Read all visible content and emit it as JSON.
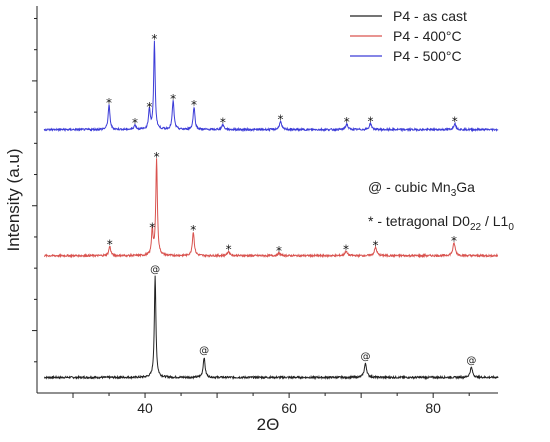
{
  "chart_data": {
    "type": "line",
    "xlabel": "2Θ",
    "ylabel": "Intensity (a.u)",
    "xlim": [
      25,
      89
    ],
    "ylim": [
      0,
      6.2
    ],
    "x_ticks": [
      40,
      60,
      80
    ],
    "grid": false,
    "legend_position": "top-right",
    "series": [
      {
        "name": "P4 - as cast",
        "color": "#222222",
        "offset": 0,
        "baseline": 0.25,
        "peaks": [
          {
            "x": 41.4,
            "h": 1.62,
            "w": 0.13,
            "mark": "@"
          },
          {
            "x": 48.2,
            "h": 0.32,
            "w": 0.16,
            "mark": "@"
          },
          {
            "x": 70.6,
            "h": 0.22,
            "w": 0.2,
            "mark": "@"
          },
          {
            "x": 85.3,
            "h": 0.16,
            "w": 0.2,
            "mark": "@"
          }
        ]
      },
      {
        "name": "P4 - 400°C",
        "color": "#d9534f",
        "offset": 2.0,
        "baseline": 0.2,
        "peaks": [
          {
            "x": 35.1,
            "h": 0.15,
            "w": 0.16,
            "mark": "*"
          },
          {
            "x": 41.0,
            "h": 0.42,
            "w": 0.12,
            "mark": "*"
          },
          {
            "x": 41.6,
            "h": 1.55,
            "w": 0.13,
            "mark": "*"
          },
          {
            "x": 46.7,
            "h": 0.38,
            "w": 0.16,
            "mark": "*"
          },
          {
            "x": 51.6,
            "h": 0.07,
            "w": 0.2,
            "mark": "*"
          },
          {
            "x": 58.6,
            "h": 0.04,
            "w": 0.2,
            "mark": "*"
          },
          {
            "x": 67.9,
            "h": 0.07,
            "w": 0.2,
            "mark": "*"
          },
          {
            "x": 72.0,
            "h": 0.13,
            "w": 0.2,
            "mark": "*"
          },
          {
            "x": 82.9,
            "h": 0.2,
            "w": 0.2,
            "mark": "*"
          }
        ]
      },
      {
        "name": "P4 - 500°C",
        "color": "#3c3cd8",
        "offset": 4.0,
        "baseline": 0.22,
        "peaks": [
          {
            "x": 35.0,
            "h": 0.39,
            "w": 0.15,
            "mark": "*"
          },
          {
            "x": 38.6,
            "h": 0.07,
            "w": 0.18,
            "mark": "*"
          },
          {
            "x": 40.6,
            "h": 0.33,
            "w": 0.14,
            "mark": "*"
          },
          {
            "x": 41.3,
            "h": 1.42,
            "w": 0.12,
            "mark": "*"
          },
          {
            "x": 43.9,
            "h": 0.46,
            "w": 0.15,
            "mark": "*"
          },
          {
            "x": 46.8,
            "h": 0.36,
            "w": 0.15,
            "mark": "*"
          },
          {
            "x": 50.8,
            "h": 0.08,
            "w": 0.18,
            "mark": "*"
          },
          {
            "x": 58.8,
            "h": 0.13,
            "w": 0.18,
            "mark": "*"
          },
          {
            "x": 68.0,
            "h": 0.09,
            "w": 0.18,
            "mark": "*"
          },
          {
            "x": 71.3,
            "h": 0.1,
            "w": 0.18,
            "mark": "*"
          },
          {
            "x": 83.0,
            "h": 0.1,
            "w": 0.18,
            "mark": "*"
          }
        ]
      }
    ],
    "annotations": {
      "cubic_prefix": "@ - cubic Mn",
      "cubic_sub": "3",
      "cubic_suffix": "Ga",
      "tetra_prefix": "* - tetragonal D0",
      "tetra_sub1": "22",
      "tetra_mid": " / L1",
      "tetra_sub2": "0"
    }
  }
}
